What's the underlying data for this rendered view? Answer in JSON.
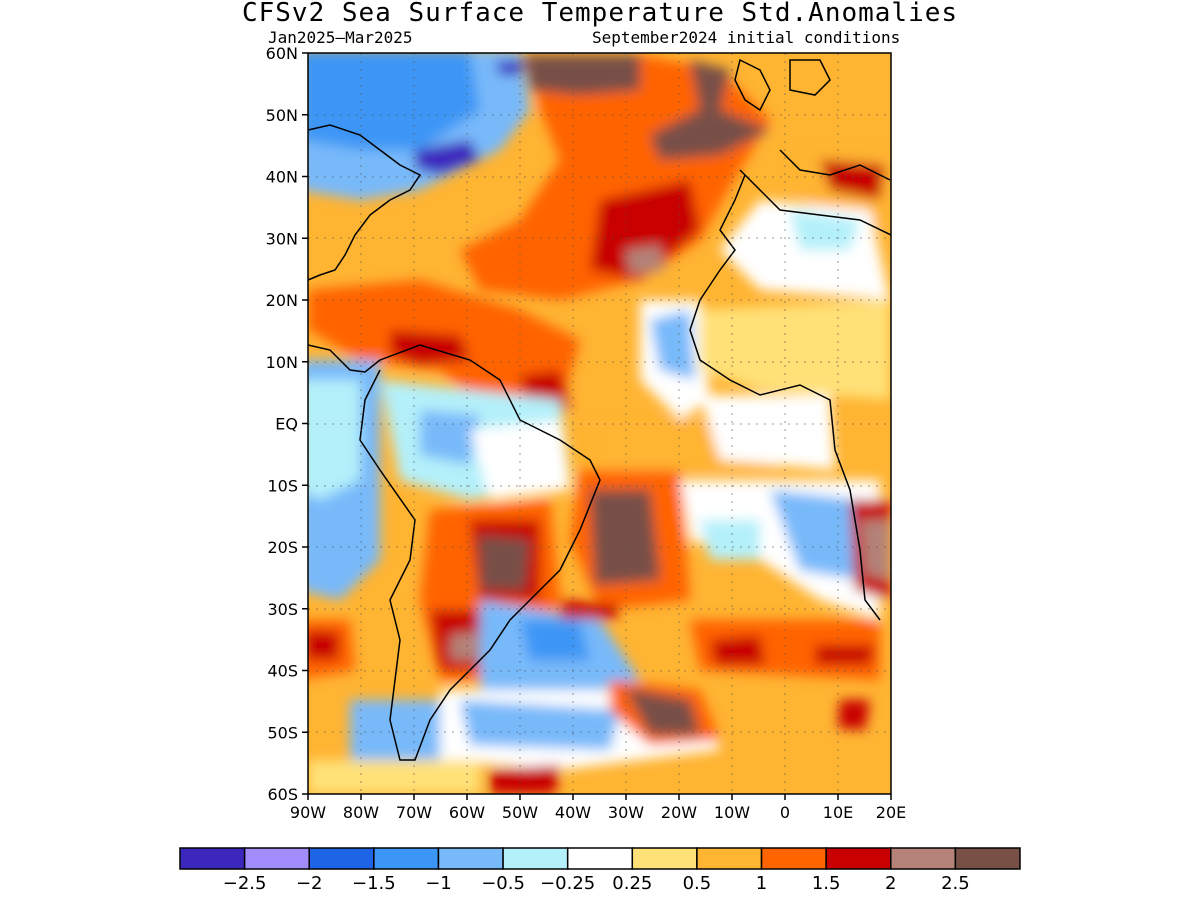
{
  "title": "CFSv2 Sea Surface Temperature Std.Anomalies",
  "subtitle_left": "Jan2025–Mar2025",
  "subtitle_right": "September2024 initial conditions",
  "map": {
    "lon_range": [
      -90,
      20
    ],
    "lat_range": [
      -60,
      60
    ],
    "lat_labels": [
      "60N",
      "50N",
      "40N",
      "30N",
      "20N",
      "10N",
      "EQ",
      "10S",
      "20S",
      "30S",
      "40S",
      "50S",
      "60S"
    ],
    "lon_labels": [
      "90W",
      "80W",
      "70W",
      "60W",
      "50W",
      "40W",
      "30W",
      "20W",
      "10W",
      "0",
      "10E",
      "20E"
    ],
    "grid": true
  },
  "colorbar": {
    "colors": [
      "#3c27be",
      "#a08cfa",
      "#1e64e6",
      "#3c96f5",
      "#78b9fa",
      "#b4f0fa",
      "#ffffff",
      "#ffe178",
      "#ffb432",
      "#ff6400",
      "#c80000",
      "#b48278",
      "#785046"
    ],
    "labels": [
      "−2.5",
      "−2",
      "−1.5",
      "−1",
      "−0.5",
      "−0.25",
      "0.25",
      "0.5",
      "1",
      "1.5",
      "2",
      "2.5"
    ]
  }
}
